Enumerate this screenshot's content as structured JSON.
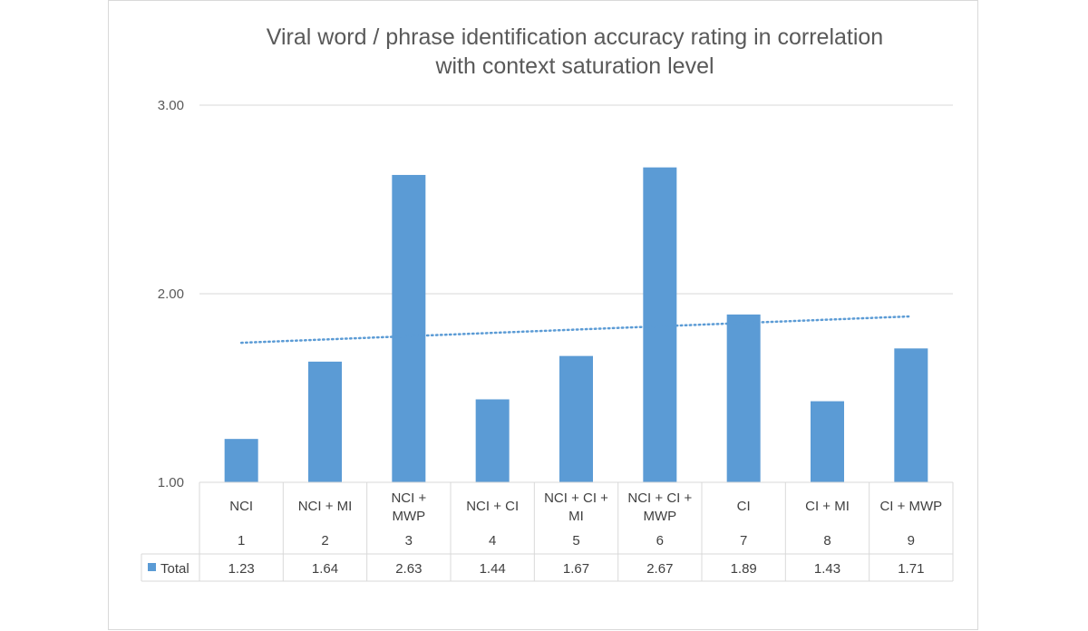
{
  "chart_data": {
    "type": "bar",
    "title": "Viral word / phrase identification accuracy rating in correlation with context saturation level",
    "title_lines": [
      "Viral word / phrase identification accuracy rating in correlation",
      "with context saturation level"
    ],
    "categories": [
      [
        "NCI",
        "1"
      ],
      [
        "NCI + MI",
        "2"
      ],
      [
        "NCI +",
        "MWP",
        "3"
      ],
      [
        "NCI + CI",
        "4"
      ],
      [
        "NCI + CI +",
        "MI",
        "5"
      ],
      [
        "NCI + CI +",
        "MWP",
        "6"
      ],
      [
        "CI",
        "7"
      ],
      [
        "CI + MI",
        "8"
      ],
      [
        "CI + MWP",
        "9"
      ]
    ],
    "series": [
      {
        "name": "Total",
        "color": "#5b9bd5",
        "values": [
          1.23,
          1.64,
          2.63,
          1.44,
          1.67,
          2.67,
          1.89,
          1.43,
          1.71
        ],
        "value_labels": [
          "1.23",
          "1.64",
          "2.63",
          "1.44",
          "1.67",
          "2.67",
          "1.89",
          "1.43",
          "1.71"
        ]
      }
    ],
    "trendline": {
      "type": "linear",
      "style": "dotted",
      "color": "#5b9bd5",
      "start_value": 1.74,
      "end_value": 1.88
    },
    "ylim": [
      1.0,
      3.0
    ],
    "yticks": [
      "1.00",
      "2.00",
      "3.00"
    ],
    "ytick_values": [
      1.0,
      2.0,
      3.0
    ],
    "grid": true,
    "legend": "data table",
    "data_table": true,
    "xlabel": "",
    "ylabel": ""
  }
}
